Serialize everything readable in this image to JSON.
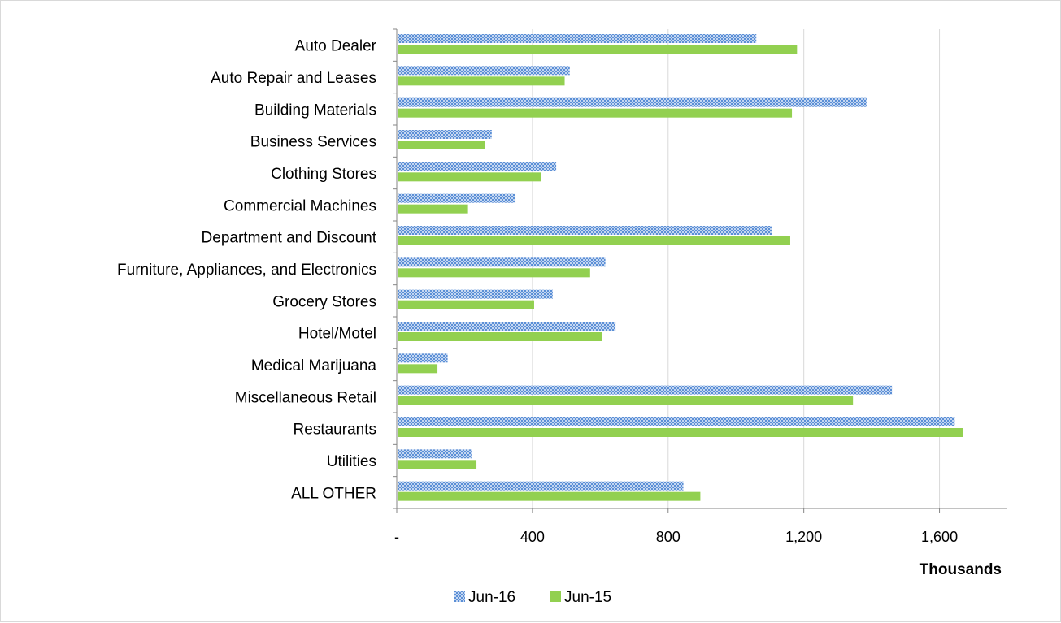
{
  "chart_data": {
    "type": "bar",
    "orientation": "horizontal",
    "categories": [
      "Auto Dealer",
      "Auto Repair and Leases",
      "Building Materials",
      "Business Services",
      "Clothing Stores",
      "Commercial Machines",
      "Department and Discount",
      "Furniture, Appliances, and Electronics",
      "Grocery Stores",
      "Hotel/Motel",
      "Medical Marijuana",
      "Miscellaneous Retail",
      "Restaurants",
      "Utilities",
      "ALL OTHER"
    ],
    "series": [
      {
        "name": "Jun-16",
        "color": "#7da7e0",
        "pattern": "crosshatch",
        "values": [
          1060,
          510,
          1385,
          280,
          470,
          350,
          1105,
          615,
          460,
          645,
          150,
          1460,
          1645,
          220,
          845
        ]
      },
      {
        "name": "Jun-15",
        "color": "#92d050",
        "pattern": "solid",
        "values": [
          1180,
          495,
          1165,
          260,
          425,
          210,
          1160,
          570,
          405,
          605,
          120,
          1345,
          1670,
          235,
          895
        ]
      }
    ],
    "xlim": [
      0,
      1800
    ],
    "xticks": [
      0,
      400,
      800,
      1200,
      1600
    ],
    "xtick_labels": [
      "-",
      "400",
      "800",
      "1,200",
      "1,600"
    ],
    "unit_label": "Thousands",
    "grid": "vertical",
    "legend_position": "bottom"
  }
}
